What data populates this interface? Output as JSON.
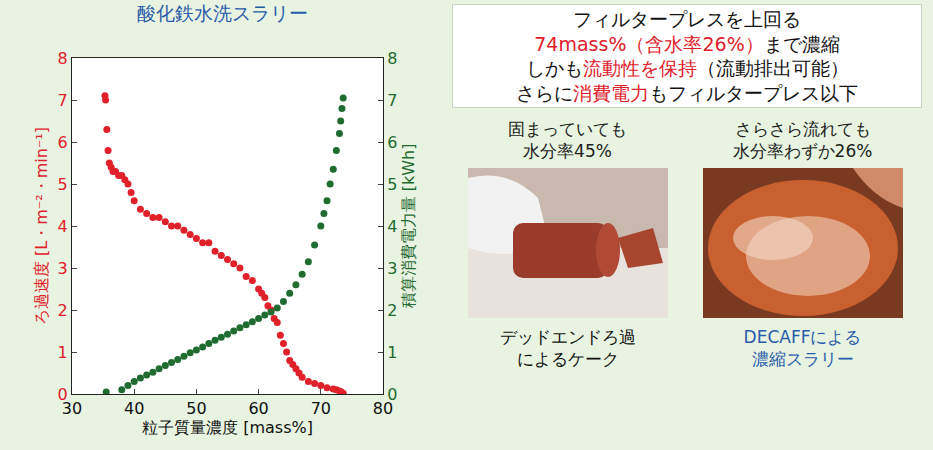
{
  "chart_data": {
    "type": "scatter",
    "title": "酸化鉄水洗スラリー",
    "x_label": "粒子質量濃度 [mass%]",
    "y_label": "ろ過速度 [L・m⁻²・min⁻¹]",
    "y2_label": "積算消費電力量 [kWh]",
    "xlim": [
      30,
      80
    ],
    "xticks": [
      30,
      40,
      50,
      60,
      70,
      80
    ],
    "ylim": [
      0,
      8
    ],
    "yticks": [
      0,
      1,
      2,
      3,
      4,
      5,
      6,
      7,
      8
    ],
    "y2lim": [
      0,
      8
    ],
    "y2ticks": [
      0,
      1,
      2,
      3,
      4,
      5,
      6,
      7,
      8
    ],
    "grid": false,
    "series": [
      {
        "name": "ろ過速度",
        "color": "#e0202a",
        "marker": "circle",
        "x": [
          35.3,
          35.4,
          35.6,
          35.8,
          36.0,
          36.3,
          36.6,
          37.0,
          37.5,
          38.0,
          38.5,
          39.0,
          39.5,
          40.0,
          41.0,
          42.0,
          43.0,
          44.0,
          45.0,
          46.0,
          47.0,
          48.0,
          49.0,
          50.0,
          51.0,
          52.0,
          53.0,
          54.0,
          55.0,
          56.0,
          57.0,
          58.0,
          59.0,
          60.0,
          60.5,
          61.0,
          61.5,
          62.0,
          62.5,
          63.0,
          63.5,
          64.0,
          64.5,
          65.0,
          65.5,
          66.0,
          66.5,
          67.0,
          68.0,
          69.0,
          70.0,
          71.0,
          72.0,
          72.5,
          73.0,
          73.3,
          73.6
        ],
        "values": [
          7.1,
          7.0,
          6.3,
          5.8,
          5.5,
          5.4,
          5.3,
          5.3,
          5.2,
          5.2,
          5.1,
          5.0,
          4.8,
          4.6,
          4.4,
          4.3,
          4.2,
          4.2,
          4.1,
          4.0,
          4.0,
          3.9,
          3.8,
          3.7,
          3.6,
          3.6,
          3.4,
          3.3,
          3.2,
          3.1,
          3.0,
          2.8,
          2.7,
          2.5,
          2.4,
          2.3,
          2.1,
          2.0,
          1.8,
          1.7,
          1.4,
          1.2,
          1.0,
          0.8,
          0.7,
          0.6,
          0.5,
          0.4,
          0.3,
          0.25,
          0.2,
          0.15,
          0.12,
          0.1,
          0.07,
          0.05,
          0.02
        ]
      },
      {
        "name": "積算消費電力量",
        "color": "#1f6b30",
        "marker": "circle",
        "axis": "y2",
        "x": [
          35.5,
          38,
          39,
          40,
          41,
          42,
          43,
          44,
          45,
          46,
          47,
          48,
          49,
          50,
          51,
          52,
          53,
          54,
          55,
          56,
          57,
          58,
          59,
          60,
          61,
          62,
          63,
          64,
          65,
          66,
          67,
          68,
          69,
          70,
          70.5,
          71,
          71.5,
          72,
          72.5,
          73,
          73.2,
          73.4,
          73.6
        ],
        "values": [
          0.05,
          0.1,
          0.2,
          0.3,
          0.38,
          0.45,
          0.52,
          0.6,
          0.68,
          0.75,
          0.82,
          0.9,
          0.98,
          1.05,
          1.12,
          1.2,
          1.28,
          1.35,
          1.42,
          1.5,
          1.58,
          1.65,
          1.72,
          1.8,
          1.88,
          1.95,
          2.05,
          2.2,
          2.4,
          2.6,
          2.85,
          3.15,
          3.55,
          4.0,
          4.3,
          4.6,
          5.0,
          5.35,
          5.8,
          6.2,
          6.5,
          6.8,
          7.05
        ]
      }
    ]
  },
  "page": {
    "headline": [
      [
        {
          "text": "フィルタープレスを上回る",
          "color": "#111111"
        }
      ],
      [
        {
          "text": "74mass%（含水率26%）",
          "color": "#e0202a"
        },
        {
          "text": "まで濃縮",
          "color": "#111111"
        }
      ],
      [
        {
          "text": "しかも",
          "color": "#111111"
        },
        {
          "text": "流動性を保持",
          "color": "#e0202a"
        },
        {
          "text": "（流動排出可能）",
          "color": "#111111"
        }
      ],
      [
        {
          "text": "さらに",
          "color": "#111111"
        },
        {
          "text": "消費電力",
          "color": "#e0202a"
        },
        {
          "text": "もフィルタープレス以下",
          "color": "#111111"
        }
      ]
    ],
    "photos": [
      {
        "caption_top": [
          "固まっていても",
          "水分率45%"
        ],
        "caption_bottom": [
          "デッドエンドろ過",
          "によるケーク"
        ],
        "caption_bottom_color": "#111111"
      },
      {
        "caption_top": [
          "さらさら流れても",
          "水分率わずか26%"
        ],
        "caption_bottom": [
          "DECAFFによる",
          "濃縮スラリー"
        ],
        "caption_bottom_color": "#2a5caa"
      }
    ]
  }
}
